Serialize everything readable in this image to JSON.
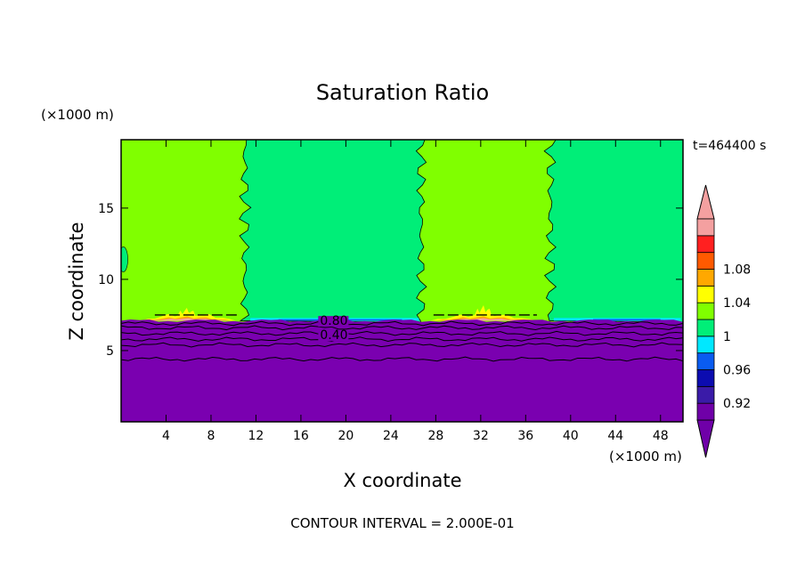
{
  "chart_data": {
    "type": "heatmap",
    "title": "Saturation Ratio",
    "xlabel": "X coordinate",
    "ylabel": "Z coordinate",
    "x_unit": "(×1000 m)",
    "y_unit": "(×1000 m)",
    "xlim": [
      0,
      50
    ],
    "ylim": [
      0,
      19.8
    ],
    "x_ticks": [
      4,
      8,
      12,
      16,
      20,
      24,
      28,
      32,
      36,
      40,
      44,
      48
    ],
    "y_ticks": [
      5,
      10,
      15
    ],
    "time_label": "t=464400 s",
    "footer": "CONTOUR INTERVAL = 2.000E-01",
    "contour_labels": [
      {
        "text": "0.80",
        "x": 17.7,
        "z": 6.8
      },
      {
        "text": "0.40",
        "x": 17.7,
        "z": 5.8
      }
    ],
    "regions": [
      {
        "level": "0.96–1",
        "x_ranges": [
          [
            10.8,
            27.0
          ],
          [
            37.8,
            50.0
          ]
        ],
        "z_range": [
          7.1,
          19.8
        ]
      },
      {
        "level": "1–1.02",
        "x_ranges": [
          [
            0,
            10.8
          ],
          [
            27.0,
            37.8
          ]
        ],
        "z_range": [
          7.1,
          19.8
        ]
      },
      {
        "level": "<0.90",
        "x_ranges": [
          [
            0,
            50
          ]
        ],
        "z_range": [
          0,
          7.1
        ]
      }
    ],
    "colorbar": {
      "levels": [
        {
          "label": "",
          "color": "#6f00a8"
        },
        {
          "label": "0.92",
          "color": "#3a1ba8"
        },
        {
          "label": "",
          "color": "#0c0cb0"
        },
        {
          "label": "0.96",
          "color": "#0a5cf0"
        },
        {
          "label": "",
          "color": "#00e8ff"
        },
        {
          "label": "1",
          "color": "#00ee78"
        },
        {
          "label": "",
          "color": "#80ff00"
        },
        {
          "label": "1.04",
          "color": "#ffff00"
        },
        {
          "label": "",
          "color": "#ffa800"
        },
        {
          "label": "1.08",
          "color": "#ff5a00"
        },
        {
          "label": "",
          "color": "#ff2020"
        },
        {
          "label": "",
          "color": "#f4a0a0"
        }
      ],
      "under_color": "#6f00a8",
      "over_color": "#f4a0a0"
    },
    "colors": {
      "purple": "#7a00b0",
      "green_light": "#80ff00",
      "green_sea": "#00ee78",
      "yellow": "#ffff00",
      "orange": "#ffa800",
      "pink": "#f4a0a0",
      "blue": "#0a5cf0",
      "cyan": "#00e8ff"
    }
  }
}
